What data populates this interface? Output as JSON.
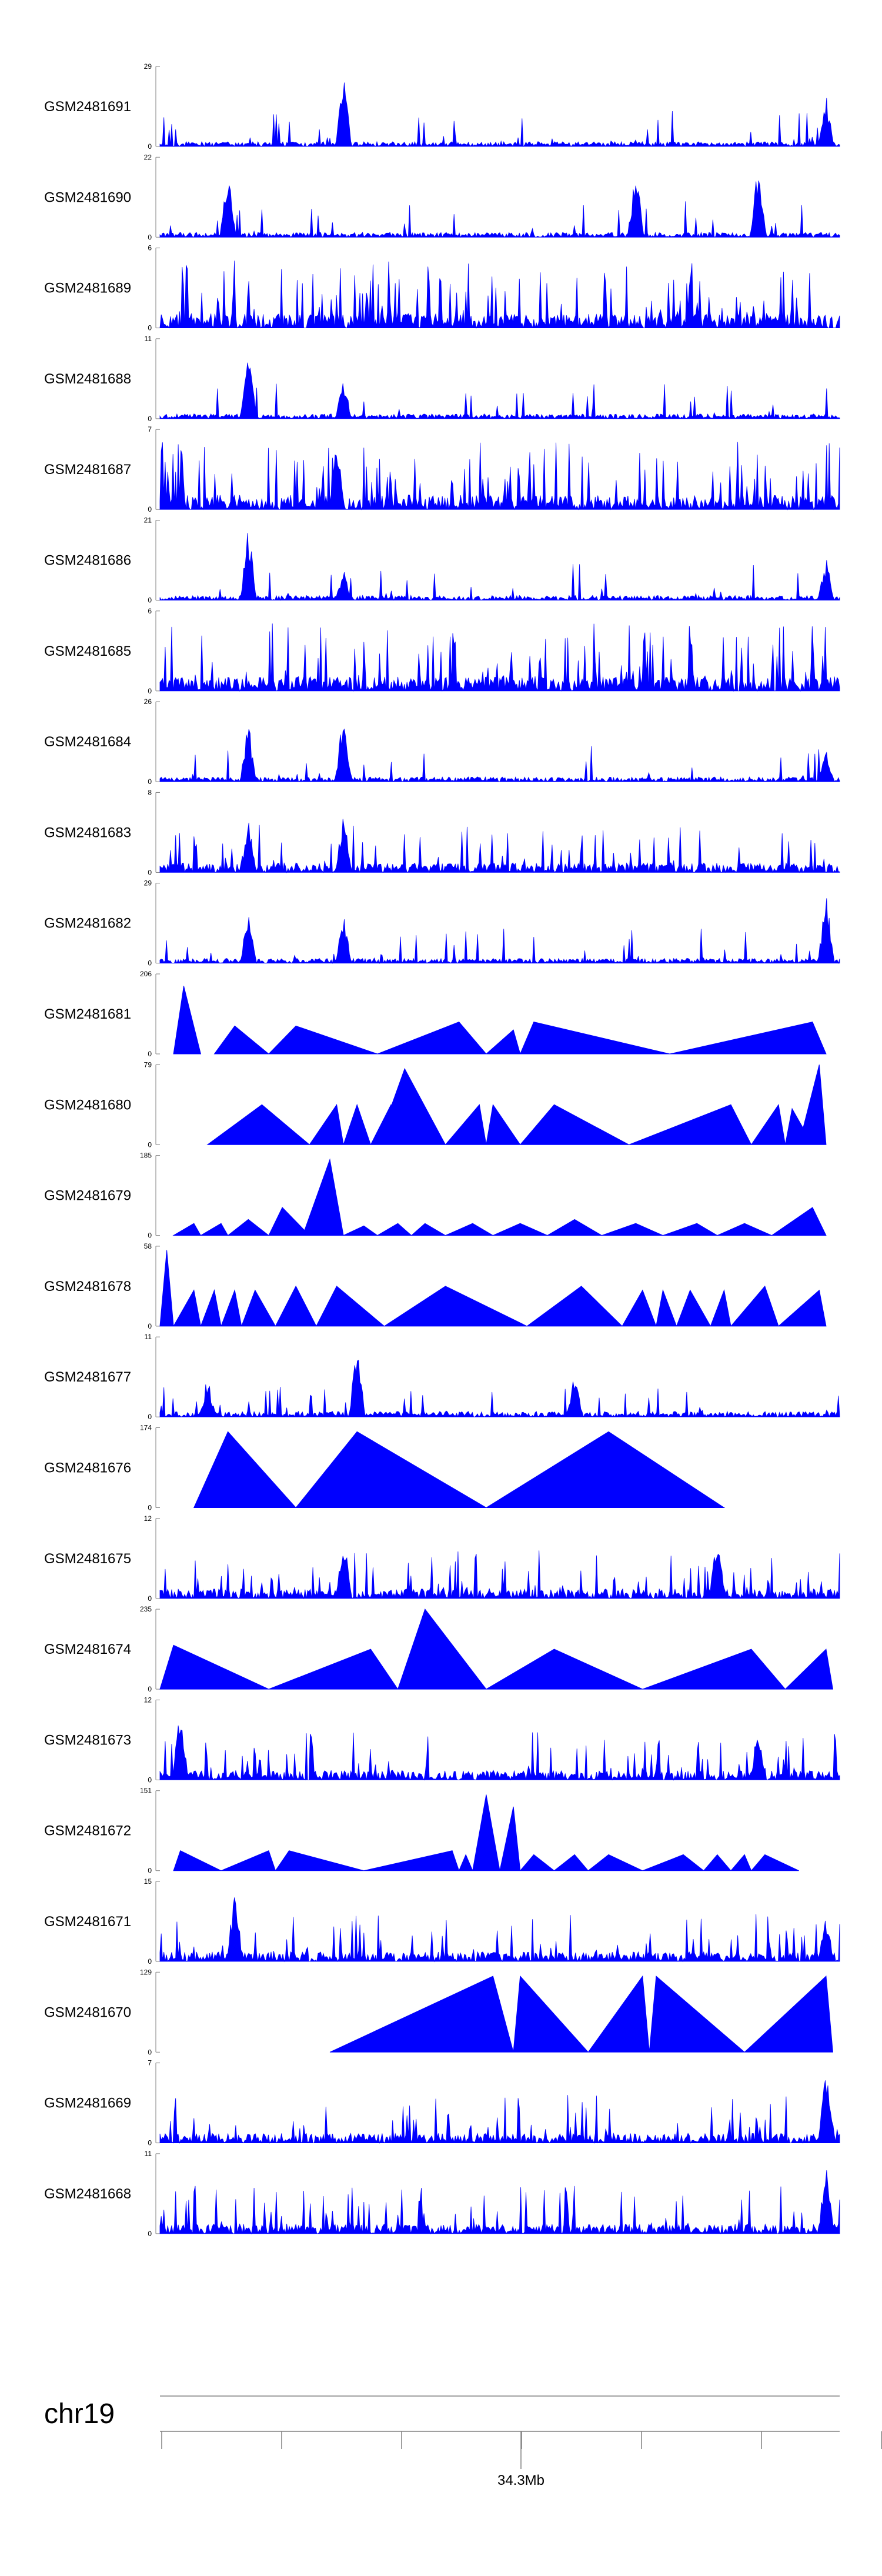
{
  "chart_data": {
    "type": "area",
    "title": "",
    "chromosome": "chr19",
    "axis": {
      "tick_label": "34.3Mb",
      "minor_ticks": 7
    },
    "color": "#0000ff",
    "tracks": [
      {
        "name": "GSM2481691",
        "ymax": 29,
        "ymin": 0,
        "style": "dense",
        "seed": 11,
        "peaks": [
          [
            0.27,
            1.0
          ],
          [
            0.98,
            0.65
          ]
        ]
      },
      {
        "name": "GSM2481690",
        "ymax": 22,
        "ymin": 0,
        "style": "triangles",
        "seed": 12,
        "peaks": [
          [
            0.1,
            0.95
          ],
          [
            0.7,
            0.95
          ],
          [
            0.88,
            0.95
          ]
        ]
      },
      {
        "name": "GSM2481689",
        "ymax": 6,
        "ymin": 0,
        "style": "dense-high",
        "seed": 13,
        "peaks": []
      },
      {
        "name": "GSM2481688",
        "ymax": 11,
        "ymin": 0,
        "style": "dense",
        "seed": 14,
        "peaks": [
          [
            0.13,
            0.95
          ],
          [
            0.27,
            0.55
          ]
        ]
      },
      {
        "name": "GSM2481687",
        "ymax": 7,
        "ymin": 0,
        "style": "dense-high",
        "seed": 15,
        "peaks": [
          [
            0.26,
            0.9
          ]
        ]
      },
      {
        "name": "GSM2481686",
        "ymax": 21,
        "ymin": 0,
        "style": "dense",
        "seed": 16,
        "peaks": [
          [
            0.13,
            1.0
          ],
          [
            0.27,
            0.4
          ],
          [
            0.98,
            0.55
          ]
        ]
      },
      {
        "name": "GSM2481685",
        "ymax": 6,
        "ymin": 0,
        "style": "dense-high",
        "seed": 17,
        "peaks": []
      },
      {
        "name": "GSM2481684",
        "ymax": 26,
        "ymin": 0,
        "style": "dense",
        "seed": 18,
        "peaks": [
          [
            0.13,
            0.8
          ],
          [
            0.27,
            1.0
          ],
          [
            0.98,
            0.4
          ]
        ]
      },
      {
        "name": "GSM2481683",
        "ymax": 8,
        "ymin": 0,
        "style": "dense-mid",
        "seed": 19,
        "peaks": [
          [
            0.27,
            0.9
          ],
          [
            0.13,
            0.7
          ]
        ]
      },
      {
        "name": "GSM2481682",
        "ymax": 29,
        "ymin": 0,
        "style": "dense",
        "seed": 20,
        "peaks": [
          [
            0.13,
            0.7
          ],
          [
            0.27,
            0.65
          ],
          [
            0.98,
            1.0
          ]
        ]
      },
      {
        "name": "GSM2481681",
        "ymax": 206,
        "ymin": 0,
        "style": "sparse",
        "seed": 21,
        "tri": [
          [
            0.02,
            0.035,
            0.06,
            0.85
          ],
          [
            0.08,
            0.11,
            0.16,
            0.35
          ],
          [
            0.16,
            0.2,
            0.32,
            0.35
          ],
          [
            0.32,
            0.44,
            0.48,
            0.4
          ],
          [
            0.48,
            0.52,
            0.53,
            0.3
          ],
          [
            0.53,
            0.55,
            0.75,
            0.4
          ],
          [
            0.75,
            0.96,
            0.98,
            0.4
          ]
        ]
      },
      {
        "name": "GSM2481680",
        "ymax": 79,
        "ymin": 0,
        "style": "sparse",
        "seed": 22,
        "tri": [
          [
            0.07,
            0.15,
            0.22,
            0.5
          ],
          [
            0.22,
            0.26,
            0.27,
            0.5
          ],
          [
            0.27,
            0.29,
            0.31,
            0.5
          ],
          [
            0.31,
            0.34,
            0.36,
            0.5
          ],
          [
            0.32,
            0.36,
            0.42,
            0.95
          ],
          [
            0.42,
            0.47,
            0.48,
            0.5
          ],
          [
            0.48,
            0.49,
            0.53,
            0.5
          ],
          [
            0.53,
            0.58,
            0.69,
            0.5
          ],
          [
            0.69,
            0.84,
            0.87,
            0.5
          ],
          [
            0.87,
            0.91,
            0.92,
            0.5
          ],
          [
            0.92,
            0.93,
            0.96,
            0.45
          ],
          [
            0.94,
            0.97,
            0.98,
            1.0
          ]
        ]
      },
      {
        "name": "GSM2481679",
        "ymax": 185,
        "ymin": 0,
        "style": "sparse",
        "seed": 23,
        "tri": [
          [
            0.02,
            0.05,
            0.06,
            0.15
          ],
          [
            0.06,
            0.09,
            0.1,
            0.15
          ],
          [
            0.1,
            0.13,
            0.16,
            0.2
          ],
          [
            0.16,
            0.18,
            0.22,
            0.35
          ],
          [
            0.21,
            0.25,
            0.27,
            0.95
          ],
          [
            0.27,
            0.3,
            0.32,
            0.12
          ],
          [
            0.32,
            0.35,
            0.37,
            0.15
          ],
          [
            0.37,
            0.39,
            0.42,
            0.15
          ],
          [
            0.42,
            0.46,
            0.49,
            0.15
          ],
          [
            0.49,
            0.53,
            0.57,
            0.15
          ],
          [
            0.57,
            0.61,
            0.65,
            0.2
          ],
          [
            0.65,
            0.7,
            0.74,
            0.15
          ],
          [
            0.74,
            0.79,
            0.82,
            0.15
          ],
          [
            0.82,
            0.86,
            0.9,
            0.15
          ],
          [
            0.9,
            0.96,
            0.98,
            0.35
          ]
        ]
      },
      {
        "name": "GSM2481678",
        "ymax": 58,
        "ymin": 0,
        "style": "sparse",
        "seed": 24,
        "tri": [
          [
            0.0,
            0.01,
            0.02,
            0.95
          ],
          [
            0.02,
            0.05,
            0.06,
            0.45
          ],
          [
            0.06,
            0.08,
            0.09,
            0.45
          ],
          [
            0.09,
            0.11,
            0.12,
            0.45
          ],
          [
            0.12,
            0.14,
            0.17,
            0.45
          ],
          [
            0.17,
            0.2,
            0.23,
            0.5
          ],
          [
            0.23,
            0.26,
            0.33,
            0.5
          ],
          [
            0.33,
            0.42,
            0.54,
            0.5
          ],
          [
            0.54,
            0.62,
            0.68,
            0.5
          ],
          [
            0.68,
            0.71,
            0.73,
            0.45
          ],
          [
            0.73,
            0.74,
            0.76,
            0.45
          ],
          [
            0.76,
            0.78,
            0.81,
            0.45
          ],
          [
            0.81,
            0.83,
            0.84,
            0.45
          ],
          [
            0.84,
            0.89,
            0.91,
            0.5
          ],
          [
            0.91,
            0.97,
            0.98,
            0.45
          ]
        ]
      },
      {
        "name": "GSM2481677",
        "ymax": 11,
        "ymin": 0,
        "style": "dense-low",
        "seed": 25,
        "peaks": [
          [
            0.29,
            1.0
          ],
          [
            0.61,
            0.6
          ],
          [
            0.07,
            0.55
          ]
        ]
      },
      {
        "name": "GSM2481676",
        "ymax": 174,
        "ymin": 0,
        "style": "sparse",
        "seed": 26,
        "tri": [
          [
            0.05,
            0.1,
            0.2,
            0.95
          ],
          [
            0.2,
            0.29,
            0.48,
            0.95
          ],
          [
            0.48,
            0.66,
            0.83,
            0.95
          ]
        ]
      },
      {
        "name": "GSM2481675",
        "ymax": 12,
        "ymin": 0,
        "style": "dense-mid",
        "seed": 27,
        "peaks": [
          [
            0.27,
            0.9
          ],
          [
            0.82,
            0.9
          ]
        ]
      },
      {
        "name": "GSM2481674",
        "ymax": 235,
        "ymin": 0,
        "style": "sparse",
        "seed": 28,
        "tri": [
          [
            0.0,
            0.02,
            0.16,
            0.55
          ],
          [
            0.16,
            0.31,
            0.35,
            0.5
          ],
          [
            0.35,
            0.39,
            0.48,
            1.0
          ],
          [
            0.48,
            0.58,
            0.71,
            0.5
          ],
          [
            0.71,
            0.87,
            0.92,
            0.5
          ],
          [
            0.92,
            0.98,
            0.99,
            0.5
          ]
        ]
      },
      {
        "name": "GSM2481673",
        "ymax": 12,
        "ymin": 0,
        "style": "dense-mid",
        "seed": 29,
        "peaks": [
          [
            0.03,
            1.0
          ],
          [
            0.88,
            0.75
          ]
        ]
      },
      {
        "name": "GSM2481672",
        "ymax": 151,
        "ymin": 0,
        "style": "sparse",
        "seed": 30,
        "tri": [
          [
            0.02,
            0.03,
            0.09,
            0.25
          ],
          [
            0.09,
            0.16,
            0.17,
            0.25
          ],
          [
            0.17,
            0.19,
            0.3,
            0.25
          ],
          [
            0.3,
            0.43,
            0.44,
            0.25
          ],
          [
            0.44,
            0.45,
            0.46,
            0.2
          ],
          [
            0.46,
            0.48,
            0.5,
            0.95
          ],
          [
            0.5,
            0.52,
            0.53,
            0.8
          ],
          [
            0.53,
            0.55,
            0.58,
            0.2
          ],
          [
            0.58,
            0.61,
            0.63,
            0.2
          ],
          [
            0.63,
            0.66,
            0.71,
            0.2
          ],
          [
            0.71,
            0.77,
            0.8,
            0.2
          ],
          [
            0.8,
            0.82,
            0.84,
            0.2
          ],
          [
            0.84,
            0.86,
            0.87,
            0.2
          ],
          [
            0.87,
            0.89,
            0.94,
            0.2
          ]
        ]
      },
      {
        "name": "GSM2481671",
        "ymax": 15,
        "ymin": 0,
        "style": "dense-mid",
        "seed": 31,
        "peaks": [
          [
            0.11,
            1.0
          ],
          [
            0.98,
            0.6
          ]
        ]
      },
      {
        "name": "GSM2481670",
        "ymax": 129,
        "ymin": 0,
        "style": "sparse",
        "seed": 32,
        "tri": [
          [
            0.25,
            0.49,
            0.52,
            0.95
          ],
          [
            0.52,
            0.53,
            0.63,
            0.95
          ],
          [
            0.63,
            0.71,
            0.72,
            0.95
          ],
          [
            0.72,
            0.73,
            0.86,
            0.95
          ],
          [
            0.86,
            0.98,
            0.99,
            0.95
          ]
        ]
      },
      {
        "name": "GSM2481669",
        "ymax": 7,
        "ymin": 0,
        "style": "dense-mid",
        "seed": 33,
        "peaks": [
          [
            0.98,
            0.95
          ]
        ]
      },
      {
        "name": "GSM2481668",
        "ymax": 11,
        "ymin": 0,
        "style": "dense-mid",
        "seed": 34,
        "peaks": [
          [
            0.98,
            0.95
          ]
        ]
      }
    ]
  }
}
